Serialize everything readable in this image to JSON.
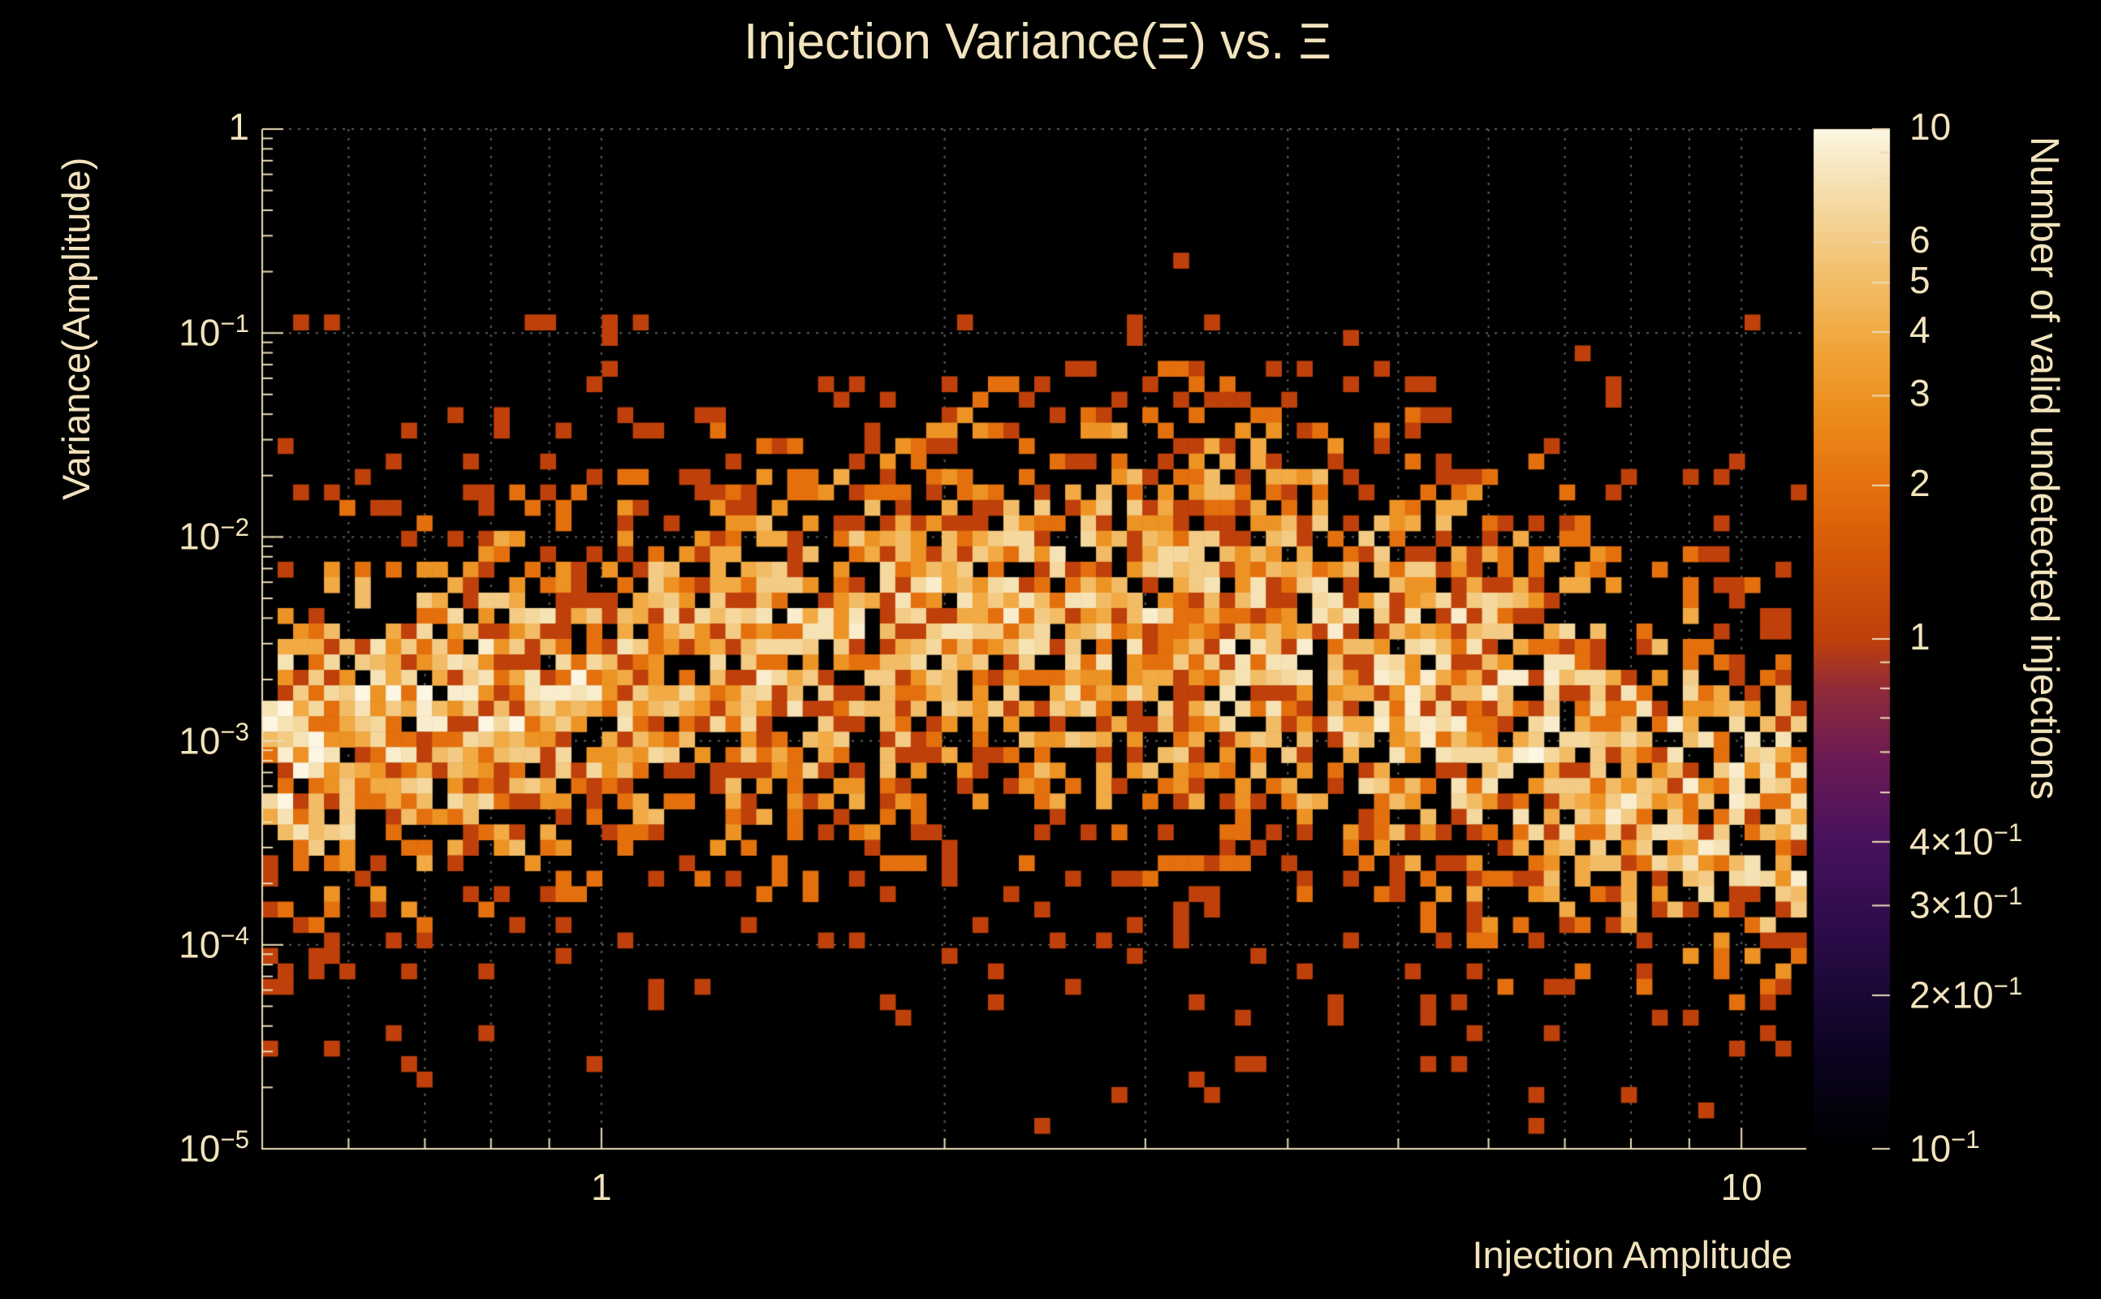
{
  "chart_data": {
    "type": "heatmap",
    "title": "Injection Variance(Ξ) vs. Ξ",
    "xlabel": "Injection Amplitude",
    "ylabel": "Variance(Amplitude)",
    "x_axis": {
      "scale": "log",
      "min": 0.504,
      "max": 11.4,
      "ticks": [
        {
          "v": 1,
          "base": "1",
          "exp": ""
        },
        {
          "v": 10,
          "base": "10",
          "exp": ""
        }
      ],
      "minor_ticks": [
        0.6,
        0.7,
        0.8,
        0.9,
        2,
        3,
        4,
        5,
        6,
        7,
        8,
        9
      ]
    },
    "y_axis": {
      "scale": "log",
      "min": 1e-05,
      "max": 1,
      "ticks": [
        {
          "v": 1,
          "base": "1",
          "exp": ""
        },
        {
          "v": 0.1,
          "base": "10",
          "exp": "−1"
        },
        {
          "v": 0.01,
          "base": "10",
          "exp": "−2"
        },
        {
          "v": 0.001,
          "base": "10",
          "exp": "−3"
        },
        {
          "v": 0.0001,
          "base": "10",
          "exp": "−4"
        },
        {
          "v": 1e-05,
          "base": "10",
          "exp": "−5"
        }
      ]
    },
    "colorbar": {
      "label": "Number of valid undetected injections",
      "scale": "log",
      "min": 0.1,
      "max": 10,
      "ticks": [
        {
          "v": 10,
          "base": "10",
          "exp": ""
        },
        {
          "v": 6,
          "base": "6",
          "exp": ""
        },
        {
          "v": 5,
          "base": "5",
          "exp": ""
        },
        {
          "v": 4,
          "base": "4",
          "exp": ""
        },
        {
          "v": 3,
          "base": "3",
          "exp": ""
        },
        {
          "v": 2,
          "base": "2",
          "exp": ""
        },
        {
          "v": 1,
          "base": "1",
          "exp": ""
        },
        {
          "v": 0.4,
          "base": "4×10",
          "exp": "−1"
        },
        {
          "v": 0.3,
          "base": "3×10",
          "exp": "−1"
        },
        {
          "v": 0.2,
          "base": "2×10",
          "exp": "−1"
        },
        {
          "v": 0.1,
          "base": "10",
          "exp": "−1"
        }
      ],
      "minor_ticks": [
        9,
        8,
        7,
        0.9,
        0.8,
        0.7,
        0.6,
        0.5
      ]
    },
    "grid": {
      "style": "dotted",
      "on": true
    },
    "colors": {
      "background": "#000000",
      "text": "#f2e3bd",
      "axis": "#ecdcb6",
      "grid": "#bdbdbd",
      "colormap": [
        [
          0.0,
          "#000000"
        ],
        [
          0.1,
          "#0d0423"
        ],
        [
          0.2,
          "#270b45"
        ],
        [
          0.3,
          "#47125c"
        ],
        [
          0.38,
          "#6a1a55"
        ],
        [
          0.45,
          "#8f2a3a"
        ],
        [
          0.5,
          "#bf400a"
        ],
        [
          0.58,
          "#d55708"
        ],
        [
          0.65,
          "#e4700d"
        ],
        [
          0.72,
          "#ec8c1c"
        ],
        [
          0.78,
          "#f0a236"
        ],
        [
          0.84,
          "#f2b95f"
        ],
        [
          0.9,
          "#f3cf8c"
        ],
        [
          0.95,
          "#f6e2b4"
        ],
        [
          1.0,
          "#fcf6e3"
        ]
      ]
    },
    "bins": {
      "nx": 100,
      "ny": 66
    },
    "value_range": [
      1,
      10
    ],
    "generation": {
      "seed": 97531,
      "ridge": [
        [
          -0.3,
          -3.05
        ],
        [
          0.0,
          -2.72
        ],
        [
          0.3,
          -2.42
        ],
        [
          0.55,
          -2.42
        ],
        [
          0.75,
          -2.75
        ],
        [
          0.9,
          -3.15
        ],
        [
          1.06,
          -3.45
        ]
      ],
      "sigma": [
        [
          -0.3,
          0.5
        ],
        [
          0.2,
          0.62
        ],
        [
          0.6,
          0.7
        ],
        [
          1.06,
          0.6
        ]
      ],
      "pmax": [
        [
          -0.3,
          0.95
        ],
        [
          0.1,
          0.84
        ],
        [
          0.5,
          0.8
        ],
        [
          0.8,
          0.85
        ],
        [
          1.06,
          0.8
        ]
      ],
      "bright": [
        [
          -0.3,
          1.25
        ],
        [
          0.1,
          0.95
        ],
        [
          0.5,
          0.92
        ],
        [
          0.8,
          1.1
        ],
        [
          1.06,
          1.0
        ]
      ],
      "tail_p": 0.05,
      "tail_sigma": 1.5,
      "v_top": -0.9,
      "v_bottom": -4.85
    }
  }
}
